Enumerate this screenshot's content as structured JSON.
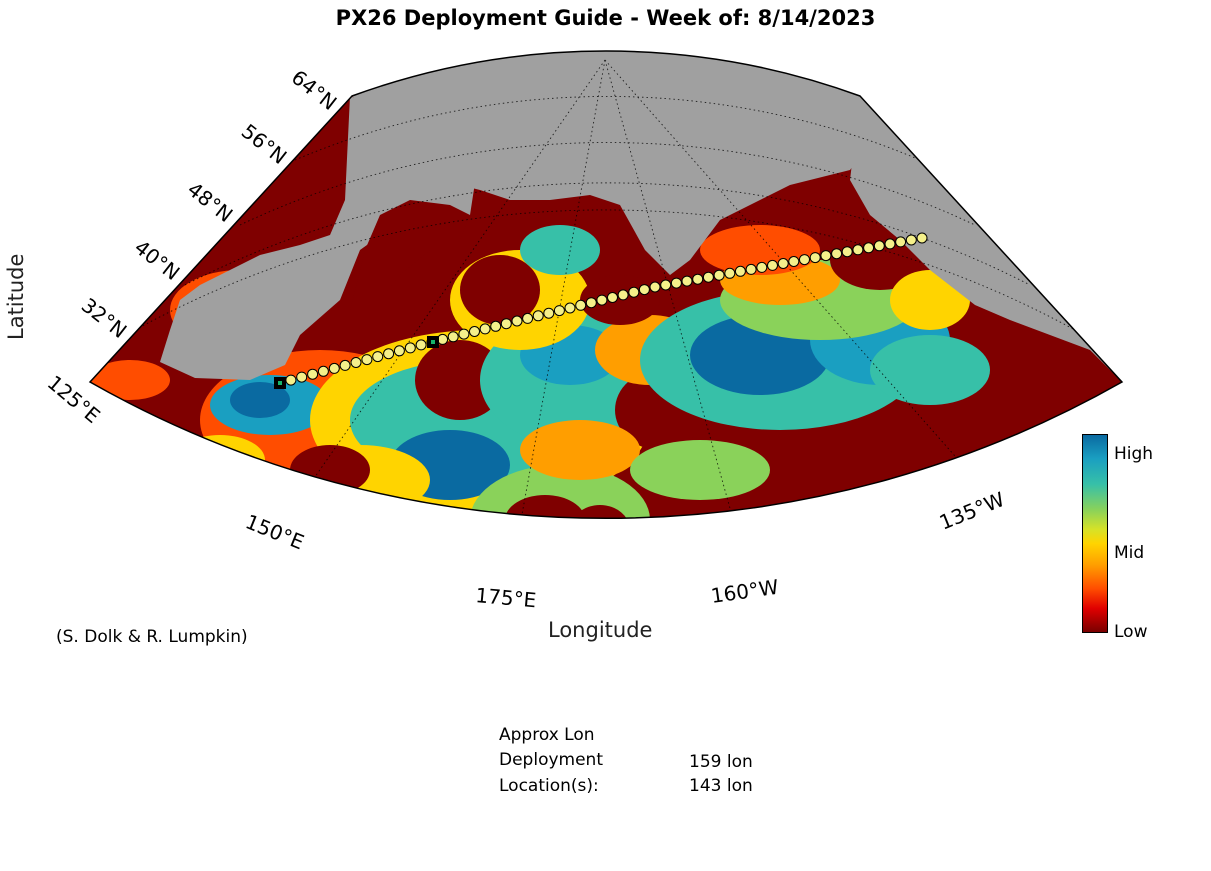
{
  "title": "PX26 Deployment Guide - Week of: 8/14/2023",
  "axes": {
    "xlabel": "Longitude",
    "ylabel": "Latitude",
    "lat_ticks": [
      "64°N",
      "56°N",
      "48°N",
      "40°N",
      "32°N"
    ],
    "lon_ticks": [
      "125°E",
      "150°E",
      "175°E",
      "160°W",
      "135°W"
    ]
  },
  "credit": "(S. Dolk & R. Lumpkin)",
  "colorbar": {
    "labels": [
      "High",
      "Mid",
      "Low"
    ],
    "colors": [
      "#0a6aa1",
      "#d7e227",
      "#7a0000"
    ]
  },
  "deployment": {
    "header": "Approx Lon",
    "label_line1": "Deployment",
    "label_line2": "Location(s):",
    "locations": [
      "159 lon",
      "143 lon"
    ]
  },
  "colors": {
    "land": "#a0a0a0",
    "deep_red": "#7f0000",
    "track_marker": "#f5f08a"
  }
}
